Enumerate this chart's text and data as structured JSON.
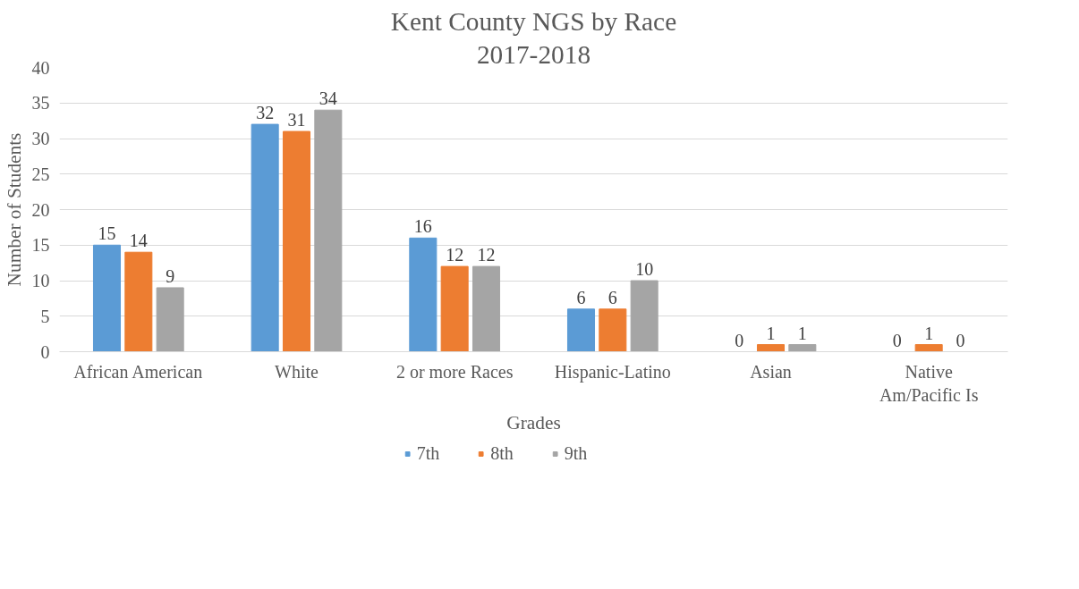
{
  "chart_data": {
    "type": "bar",
    "title": "Kent County NGS by Race",
    "subtitle": "2017-2018",
    "xlabel": "Grades",
    "ylabel": "Number of Students",
    "categories": [
      "African American",
      "White",
      "2 or more Races",
      "Hispanic-Latino",
      "Asian",
      "Native Am/Pacific Is"
    ],
    "series": [
      {
        "name": "7th",
        "color": "#5b9bd5",
        "values": [
          15,
          32,
          16,
          6,
          0,
          0
        ]
      },
      {
        "name": "8th",
        "color": "#ed7d31",
        "values": [
          14,
          31,
          12,
          6,
          1,
          1
        ]
      },
      {
        "name": "9th",
        "color": "#a5a5a5",
        "values": [
          9,
          34,
          12,
          10,
          1,
          0
        ]
      }
    ],
    "ylim": [
      0,
      40
    ],
    "yticks": [
      0,
      5,
      10,
      15,
      20,
      25,
      30,
      35,
      40
    ],
    "grid": "y",
    "legend": "bottom",
    "data_labels": true
  }
}
